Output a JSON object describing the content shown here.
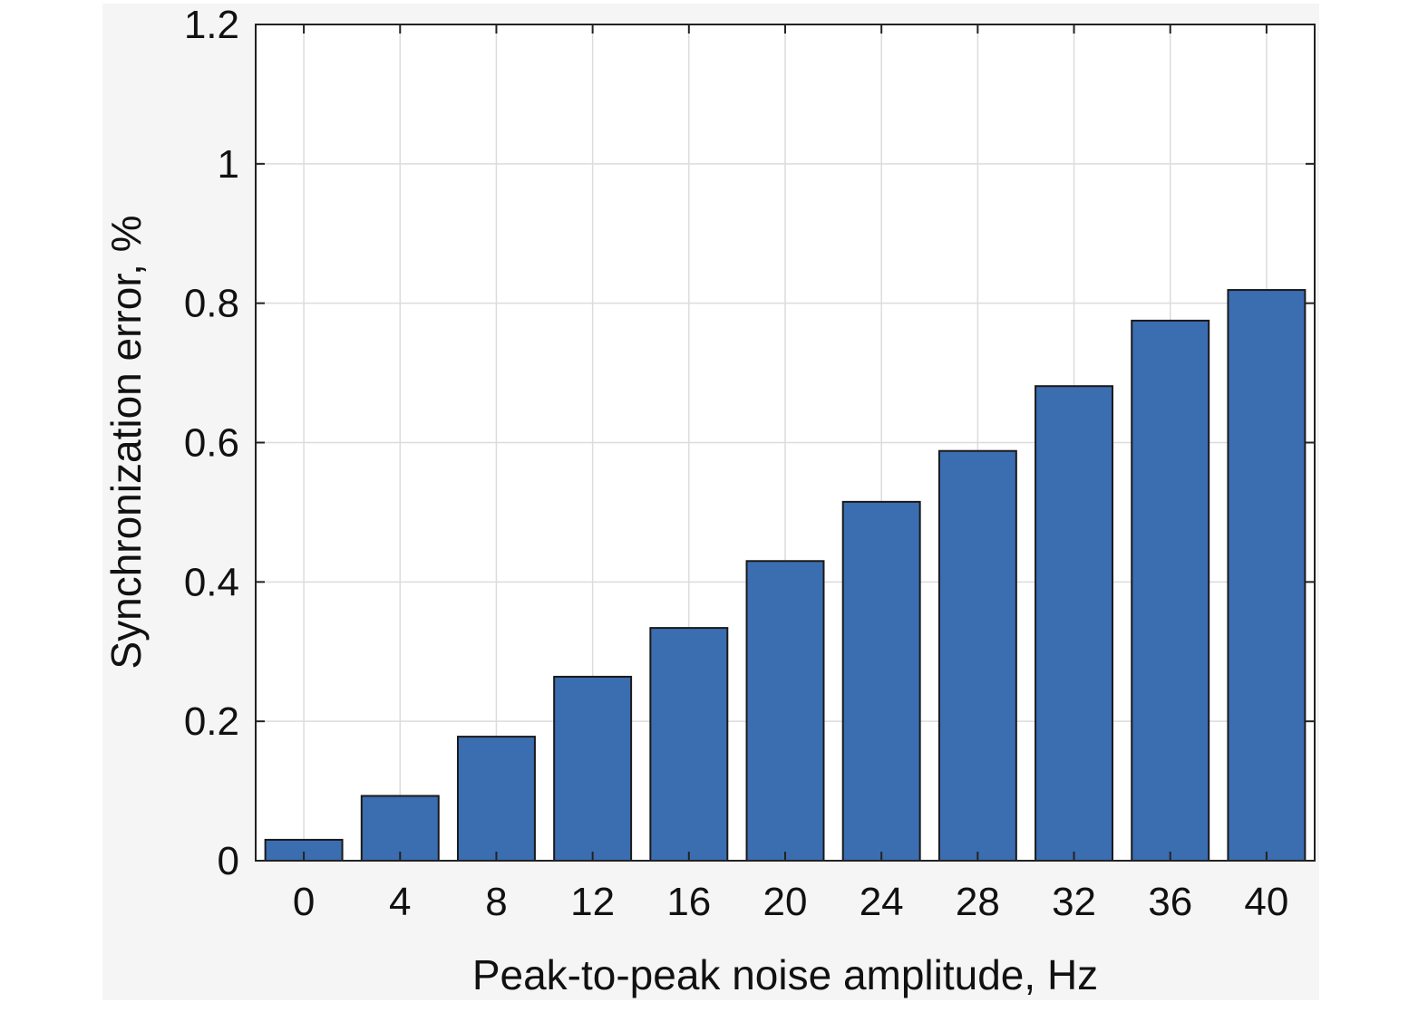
{
  "chart_data": {
    "type": "bar",
    "title": "",
    "xlabel": "Peak-to-peak noise amplitude, Hz",
    "ylabel": "Synchronization error, %",
    "categories": [
      "0",
      "4",
      "8",
      "12",
      "16",
      "20",
      "24",
      "28",
      "32",
      "36",
      "40"
    ],
    "values": [
      0.03,
      0.093,
      0.178,
      0.264,
      0.334,
      0.43,
      0.515,
      0.588,
      0.681,
      0.775,
      0.819
    ],
    "ylim": [
      0,
      1.2
    ],
    "yticks": [
      0,
      0.2,
      0.4,
      0.6,
      0.8,
      1,
      1.2
    ],
    "ytick_labels": [
      "0",
      "0.2",
      "0.4",
      "0.6",
      "0.8",
      "1",
      "1.2"
    ],
    "grid": true,
    "legend": "none",
    "colors": {
      "bar_fill": "#3b6db1",
      "bar_stroke": "#1a1a1a",
      "grid": "#dcdcdc",
      "axis": "#222222",
      "background": "#ffffff",
      "figure_background": "#f5f5f5"
    }
  }
}
